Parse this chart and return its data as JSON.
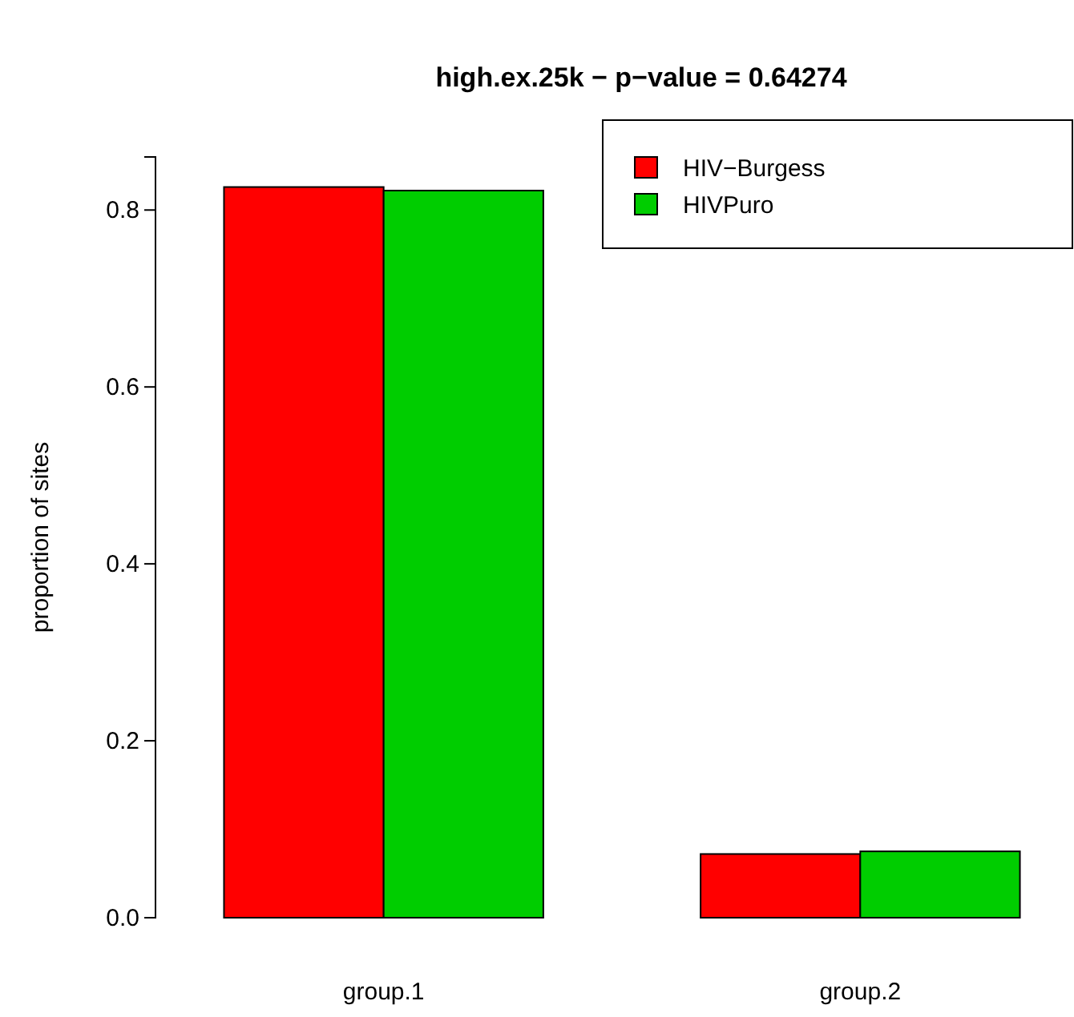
{
  "chart_data": {
    "type": "bar",
    "title": "high.ex.25k  − p−value = 0.64274",
    "ylabel": "proportion of sites",
    "categories": [
      "group.1",
      "group.2"
    ],
    "series": [
      {
        "name": "HIV−Burgess",
        "color": "#ff0000",
        "values": [
          0.826,
          0.072
        ]
      },
      {
        "name": "HIVPuro",
        "color": "#00cd00",
        "values": [
          0.822,
          0.075
        ]
      }
    ],
    "ylim": [
      0,
      0.86
    ],
    "yticks": [
      {
        "value": 0,
        "label": "0.0"
      },
      {
        "value": 0.2,
        "label": "0.2"
      },
      {
        "value": 0.4,
        "label": "0.4"
      },
      {
        "value": 0.6,
        "label": "0.6"
      },
      {
        "value": 0.8,
        "label": "0.8"
      }
    ],
    "legend": "top right"
  }
}
